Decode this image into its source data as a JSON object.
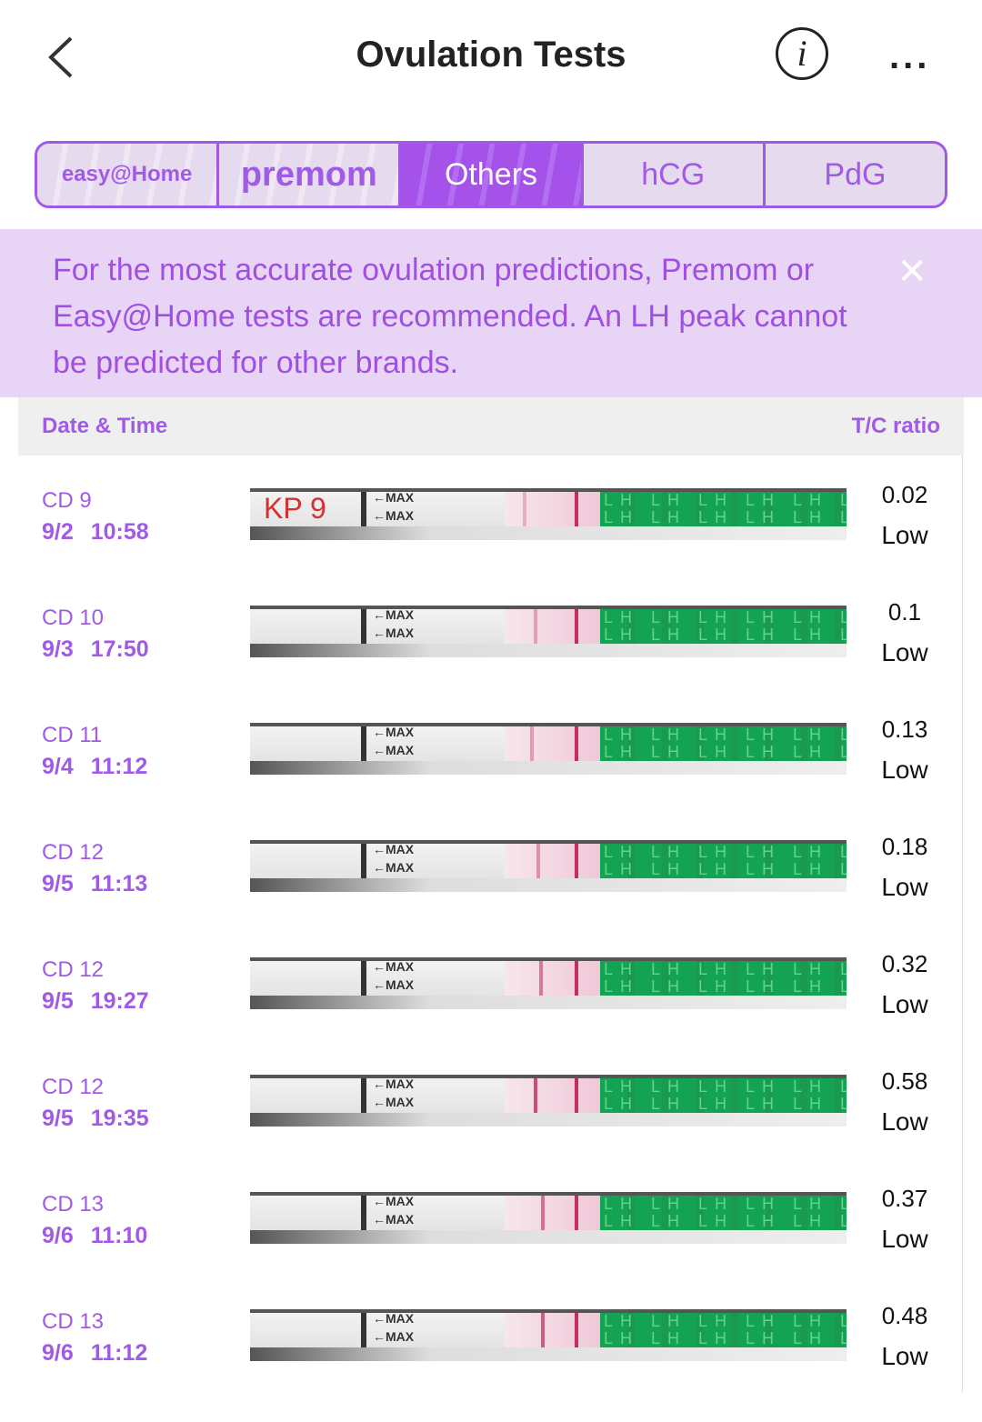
{
  "header": {
    "title": "Ovulation Tests",
    "info_icon": "i",
    "more_icon": "..."
  },
  "tabs": [
    {
      "label": "easy@Home",
      "type": "logo"
    },
    {
      "label": "premom",
      "type": "logo"
    },
    {
      "label": "Others",
      "active": true
    },
    {
      "label": "hCG"
    },
    {
      "label": "PdG"
    }
  ],
  "banner": {
    "text": "For the most accurate ovulation predictions, Premom or Easy@Home tests are recommended. An LH peak cannot be predicted for other brands.",
    "close": "✕"
  },
  "table": {
    "col_date": "Date & Time",
    "col_ratio": "T/C ratio"
  },
  "strip": {
    "max_label": "←MAX",
    "lh_text": "LH LH LH LH LH LH LH"
  },
  "rows": [
    {
      "cd": "CD 9",
      "date": "9/2 10:58",
      "ratio": "0.02",
      "level": "Low",
      "strip_label": "KP 9"
    },
    {
      "cd": "CD 10",
      "date": "9/3 17:50",
      "ratio": "0.1",
      "level": "Low"
    },
    {
      "cd": "CD 11",
      "date": "9/4 11:12",
      "ratio": "0.13",
      "level": "Low"
    },
    {
      "cd": "CD 12",
      "date": "9/5 11:13",
      "ratio": "0.18",
      "level": "Low"
    },
    {
      "cd": "CD 12",
      "date": "9/5 19:27",
      "ratio": "0.32",
      "level": "Low"
    },
    {
      "cd": "CD 12",
      "date": "9/5 19:35",
      "ratio": "0.58",
      "level": "Low"
    },
    {
      "cd": "CD 13",
      "date": "9/6 11:10",
      "ratio": "0.37",
      "level": "Low"
    },
    {
      "cd": "CD 13",
      "date": "9/6 11:12",
      "ratio": "0.48",
      "level": "Low"
    }
  ],
  "colors": {
    "accent": "#a15ae6",
    "banner_bg": "#e8d5f5",
    "green_strip": "#13a352"
  }
}
